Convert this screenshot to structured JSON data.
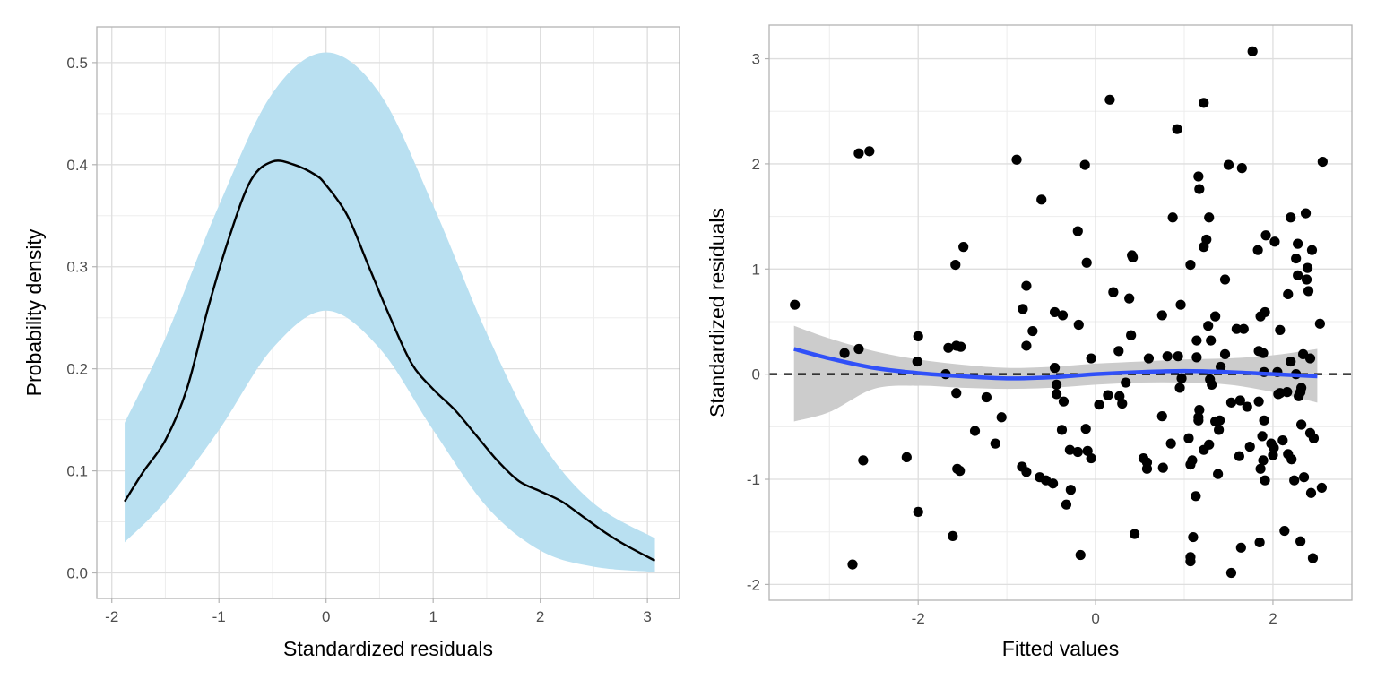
{
  "chart_data": [
    {
      "type": "area",
      "xlabel": "Standardized residuals",
      "ylabel": "Probability density",
      "xlim": [
        -2.14,
        3.3
      ],
      "ylim": [
        -0.025,
        0.535
      ],
      "xticks": [
        "-2",
        "-1",
        "0",
        "1",
        "2",
        "3"
      ],
      "yticks": [
        "0.0",
        "0.1",
        "0.2",
        "0.3",
        "0.4",
        "0.5"
      ],
      "grid": true,
      "colors": {
        "band": "#b9e0f1",
        "line": "#000000"
      },
      "density_line": {
        "x": [
          -1.88,
          -1.7,
          -1.5,
          -1.3,
          -1.1,
          -0.9,
          -0.7,
          -0.5,
          -0.3,
          -0.1,
          0.0,
          0.2,
          0.4,
          0.6,
          0.8,
          1.0,
          1.2,
          1.4,
          1.6,
          1.8,
          2.0,
          2.2,
          2.4,
          2.6,
          2.8,
          3.07
        ],
        "y": [
          0.07,
          0.1,
          0.13,
          0.18,
          0.26,
          0.33,
          0.385,
          0.403,
          0.4,
          0.39,
          0.38,
          0.35,
          0.3,
          0.25,
          0.205,
          0.18,
          0.16,
          0.135,
          0.11,
          0.09,
          0.08,
          0.07,
          0.055,
          0.04,
          0.027,
          0.012
        ]
      },
      "band": {
        "x": [
          -1.88,
          -1.5,
          -1.0,
          -0.5,
          0.0,
          0.5,
          1.0,
          1.5,
          2.0,
          2.5,
          3.07
        ],
        "upper": [
          0.147,
          0.23,
          0.36,
          0.47,
          0.51,
          0.47,
          0.36,
          0.235,
          0.13,
          0.068,
          0.034
        ],
        "lower": [
          0.03,
          0.07,
          0.14,
          0.22,
          0.257,
          0.22,
          0.14,
          0.065,
          0.022,
          0.006,
          0.001
        ]
      }
    },
    {
      "type": "scatter",
      "xlabel": "Fitted values",
      "ylabel": "Standardized residuals",
      "xlim": [
        -3.68,
        2.89
      ],
      "ylim": [
        -2.15,
        3.32
      ],
      "xticks": [
        "-2",
        "0",
        "2"
      ],
      "yticks": [
        "-2",
        "-1",
        "0",
        "1",
        "2",
        "3"
      ],
      "grid": true,
      "reference_line": {
        "y": 0,
        "style": "dashed",
        "color": "#000000"
      },
      "colors": {
        "points": "#000000",
        "smooth": "#3050f8",
        "smooth_band": "#cccccc"
      },
      "smooth": {
        "x": [
          -3.4,
          -3.0,
          -2.5,
          -2.0,
          -1.5,
          -1.0,
          -0.5,
          0.0,
          0.5,
          1.0,
          1.5,
          2.0,
          2.5
        ],
        "y": [
          0.24,
          0.15,
          0.06,
          0.01,
          -0.02,
          -0.04,
          -0.03,
          0.0,
          0.02,
          0.03,
          0.02,
          0.0,
          -0.02
        ],
        "upper": [
          0.46,
          0.34,
          0.22,
          0.14,
          0.09,
          0.06,
          0.07,
          0.1,
          0.12,
          0.14,
          0.15,
          0.18,
          0.24
        ],
        "lower": [
          -0.45,
          -0.36,
          -0.14,
          -0.11,
          -0.13,
          -0.14,
          -0.13,
          -0.1,
          -0.08,
          -0.08,
          -0.1,
          -0.17,
          -0.27
        ]
      },
      "points": [
        [
          -3.39,
          0.66
        ],
        [
          -2.83,
          0.2
        ],
        [
          -2.67,
          0.24
        ],
        [
          -2.62,
          -0.82
        ],
        [
          -2.74,
          -1.81
        ],
        [
          -2.67,
          2.1
        ],
        [
          -2.55,
          2.12
        ],
        [
          -2.13,
          -0.79
        ],
        [
          -2.0,
          0.36
        ],
        [
          -2.01,
          0.12
        ],
        [
          -2.0,
          -1.31
        ],
        [
          -1.66,
          0.25
        ],
        [
          -1.69,
          0.0
        ],
        [
          -1.58,
          1.04
        ],
        [
          -1.49,
          1.21
        ],
        [
          -1.57,
          0.27
        ],
        [
          -1.52,
          0.26
        ],
        [
          -1.57,
          -0.18
        ],
        [
          -1.56,
          -0.9
        ],
        [
          -1.53,
          -0.92
        ],
        [
          -1.61,
          -1.54
        ],
        [
          -1.36,
          -0.54
        ],
        [
          -1.23,
          -0.22
        ],
        [
          -1.13,
          -0.66
        ],
        [
          -1.06,
          -0.41
        ],
        [
          -0.89,
          2.04
        ],
        [
          -0.78,
          0.84
        ],
        [
          -0.82,
          0.62
        ],
        [
          -0.78,
          0.27
        ],
        [
          -0.71,
          0.41
        ],
        [
          -0.61,
          1.66
        ],
        [
          -0.83,
          -0.88
        ],
        [
          -0.78,
          -0.93
        ],
        [
          -0.63,
          -0.98
        ],
        [
          -0.56,
          -1.01
        ],
        [
          -0.48,
          -1.04
        ],
        [
          -0.46,
          0.06
        ],
        [
          -0.46,
          0.59
        ],
        [
          -0.37,
          0.56
        ],
        [
          -0.44,
          -0.1
        ],
        [
          -0.44,
          -0.19
        ],
        [
          -0.36,
          -0.26
        ],
        [
          -0.38,
          -0.53
        ],
        [
          -0.33,
          -1.24
        ],
        [
          -0.28,
          -1.1
        ],
        [
          -0.29,
          -0.72
        ],
        [
          -0.2,
          -0.74
        ],
        [
          -0.17,
          -1.72
        ],
        [
          -0.2,
          1.36
        ],
        [
          -0.19,
          0.47
        ],
        [
          -0.12,
          1.99
        ],
        [
          -0.1,
          1.06
        ],
        [
          -0.05,
          0.15
        ],
        [
          -0.11,
          -0.52
        ],
        [
          -0.09,
          -0.73
        ],
        [
          -0.05,
          -0.8
        ],
        [
          0.04,
          -0.29
        ],
        [
          0.14,
          -0.2
        ],
        [
          0.16,
          2.61
        ],
        [
          0.2,
          0.78
        ],
        [
          0.26,
          0.22
        ],
        [
          0.3,
          -0.28
        ],
        [
          0.27,
          -0.21
        ],
        [
          0.34,
          -0.08
        ],
        [
          0.38,
          0.72
        ],
        [
          0.4,
          0.37
        ],
        [
          0.41,
          1.13
        ],
        [
          0.42,
          1.11
        ],
        [
          0.44,
          -1.52
        ],
        [
          0.6,
          0.15
        ],
        [
          0.58,
          -0.84
        ],
        [
          0.54,
          -0.8
        ],
        [
          0.58,
          -0.9
        ],
        [
          0.75,
          -0.4
        ],
        [
          0.76,
          -0.89
        ],
        [
          0.75,
          0.56
        ],
        [
          0.85,
          -0.66
        ],
        [
          0.87,
          1.49
        ],
        [
          0.92,
          2.33
        ],
        [
          0.96,
          0.66
        ],
        [
          0.81,
          0.17
        ],
        [
          0.93,
          0.17
        ],
        [
          0.97,
          -0.04
        ],
        [
          0.95,
          -0.13
        ],
        [
          1.07,
          1.04
        ],
        [
          1.05,
          -0.61
        ],
        [
          1.07,
          -0.86
        ],
        [
          1.09,
          -0.82
        ],
        [
          1.07,
          -1.74
        ],
        [
          1.07,
          -1.78
        ],
        [
          1.1,
          -1.55
        ],
        [
          1.14,
          0.32
        ],
        [
          1.16,
          1.88
        ],
        [
          1.17,
          1.76
        ],
        [
          1.14,
          0.16
        ],
        [
          1.17,
          -0.34
        ],
        [
          1.16,
          -0.41
        ],
        [
          1.16,
          -0.44
        ],
        [
          1.13,
          -1.16
        ],
        [
          1.22,
          2.58
        ],
        [
          1.22,
          1.21
        ],
        [
          1.22,
          -0.72
        ],
        [
          1.25,
          1.28
        ],
        [
          1.28,
          1.49
        ],
        [
          1.27,
          0.46
        ],
        [
          1.3,
          0.32
        ],
        [
          1.29,
          -0.05
        ],
        [
          1.31,
          -0.1
        ],
        [
          1.28,
          -0.67
        ],
        [
          1.35,
          0.55
        ],
        [
          1.35,
          -0.45
        ],
        [
          1.4,
          -0.44
        ],
        [
          1.39,
          -0.53
        ],
        [
          1.38,
          -0.95
        ],
        [
          1.41,
          0.07
        ],
        [
          1.46,
          0.9
        ],
        [
          1.46,
          0.19
        ],
        [
          1.5,
          1.99
        ],
        [
          1.53,
          -1.89
        ],
        [
          1.53,
          -0.27
        ],
        [
          1.59,
          0.43
        ],
        [
          1.63,
          -0.25
        ],
        [
          1.64,
          -1.65
        ],
        [
          1.67,
          0.43
        ],
        [
          1.62,
          -0.78
        ],
        [
          1.65,
          1.96
        ],
        [
          1.71,
          -0.31
        ],
        [
          1.77,
          3.07
        ],
        [
          1.74,
          -0.69
        ],
        [
          1.84,
          -0.26
        ],
        [
          1.83,
          1.18
        ],
        [
          1.84,
          0.22
        ],
        [
          1.86,
          0.55
        ],
        [
          1.89,
          0.2
        ],
        [
          1.88,
          -0.59
        ],
        [
          1.91,
          0.59
        ],
        [
          1.89,
          -0.82
        ],
        [
          1.86,
          -0.9
        ],
        [
          1.85,
          -1.6
        ],
        [
          1.92,
          1.32
        ],
        [
          1.9,
          0.02
        ],
        [
          1.91,
          -1.01
        ],
        [
          1.9,
          -0.44
        ],
        [
          1.98,
          -0.66
        ],
        [
          2.0,
          -0.77
        ],
        [
          2.01,
          -0.7
        ],
        [
          2.02,
          1.26
        ],
        [
          2.06,
          -0.19
        ],
        [
          2.05,
          0.02
        ],
        [
          2.08,
          0.42
        ],
        [
          2.08,
          -0.18
        ],
        [
          2.13,
          -1.49
        ],
        [
          2.11,
          -0.63
        ],
        [
          2.16,
          -0.17
        ],
        [
          2.17,
          -0.76
        ],
        [
          2.17,
          0.76
        ],
        [
          2.2,
          1.49
        ],
        [
          2.2,
          0.12
        ],
        [
          2.21,
          -0.81
        ],
        [
          2.24,
          -1.01
        ],
        [
          2.28,
          1.24
        ],
        [
          2.26,
          1.1
        ],
        [
          2.28,
          0.94
        ],
        [
          2.26,
          0.0
        ],
        [
          2.29,
          -0.21
        ],
        [
          2.31,
          -0.17
        ],
        [
          2.32,
          -0.13
        ],
        [
          2.34,
          0.19
        ],
        [
          2.32,
          -0.48
        ],
        [
          2.35,
          -0.98
        ],
        [
          2.31,
          -1.59
        ],
        [
          2.37,
          1.53
        ],
        [
          2.38,
          0.9
        ],
        [
          2.39,
          1.01
        ],
        [
          2.4,
          0.79
        ],
        [
          2.42,
          0.15
        ],
        [
          2.42,
          -0.56
        ],
        [
          2.46,
          -0.61
        ],
        [
          2.43,
          -1.13
        ],
        [
          2.45,
          -1.75
        ],
        [
          2.44,
          1.18
        ],
        [
          2.53,
          0.48
        ],
        [
          2.56,
          2.02
        ],
        [
          2.55,
          -1.08
        ]
      ]
    }
  ]
}
